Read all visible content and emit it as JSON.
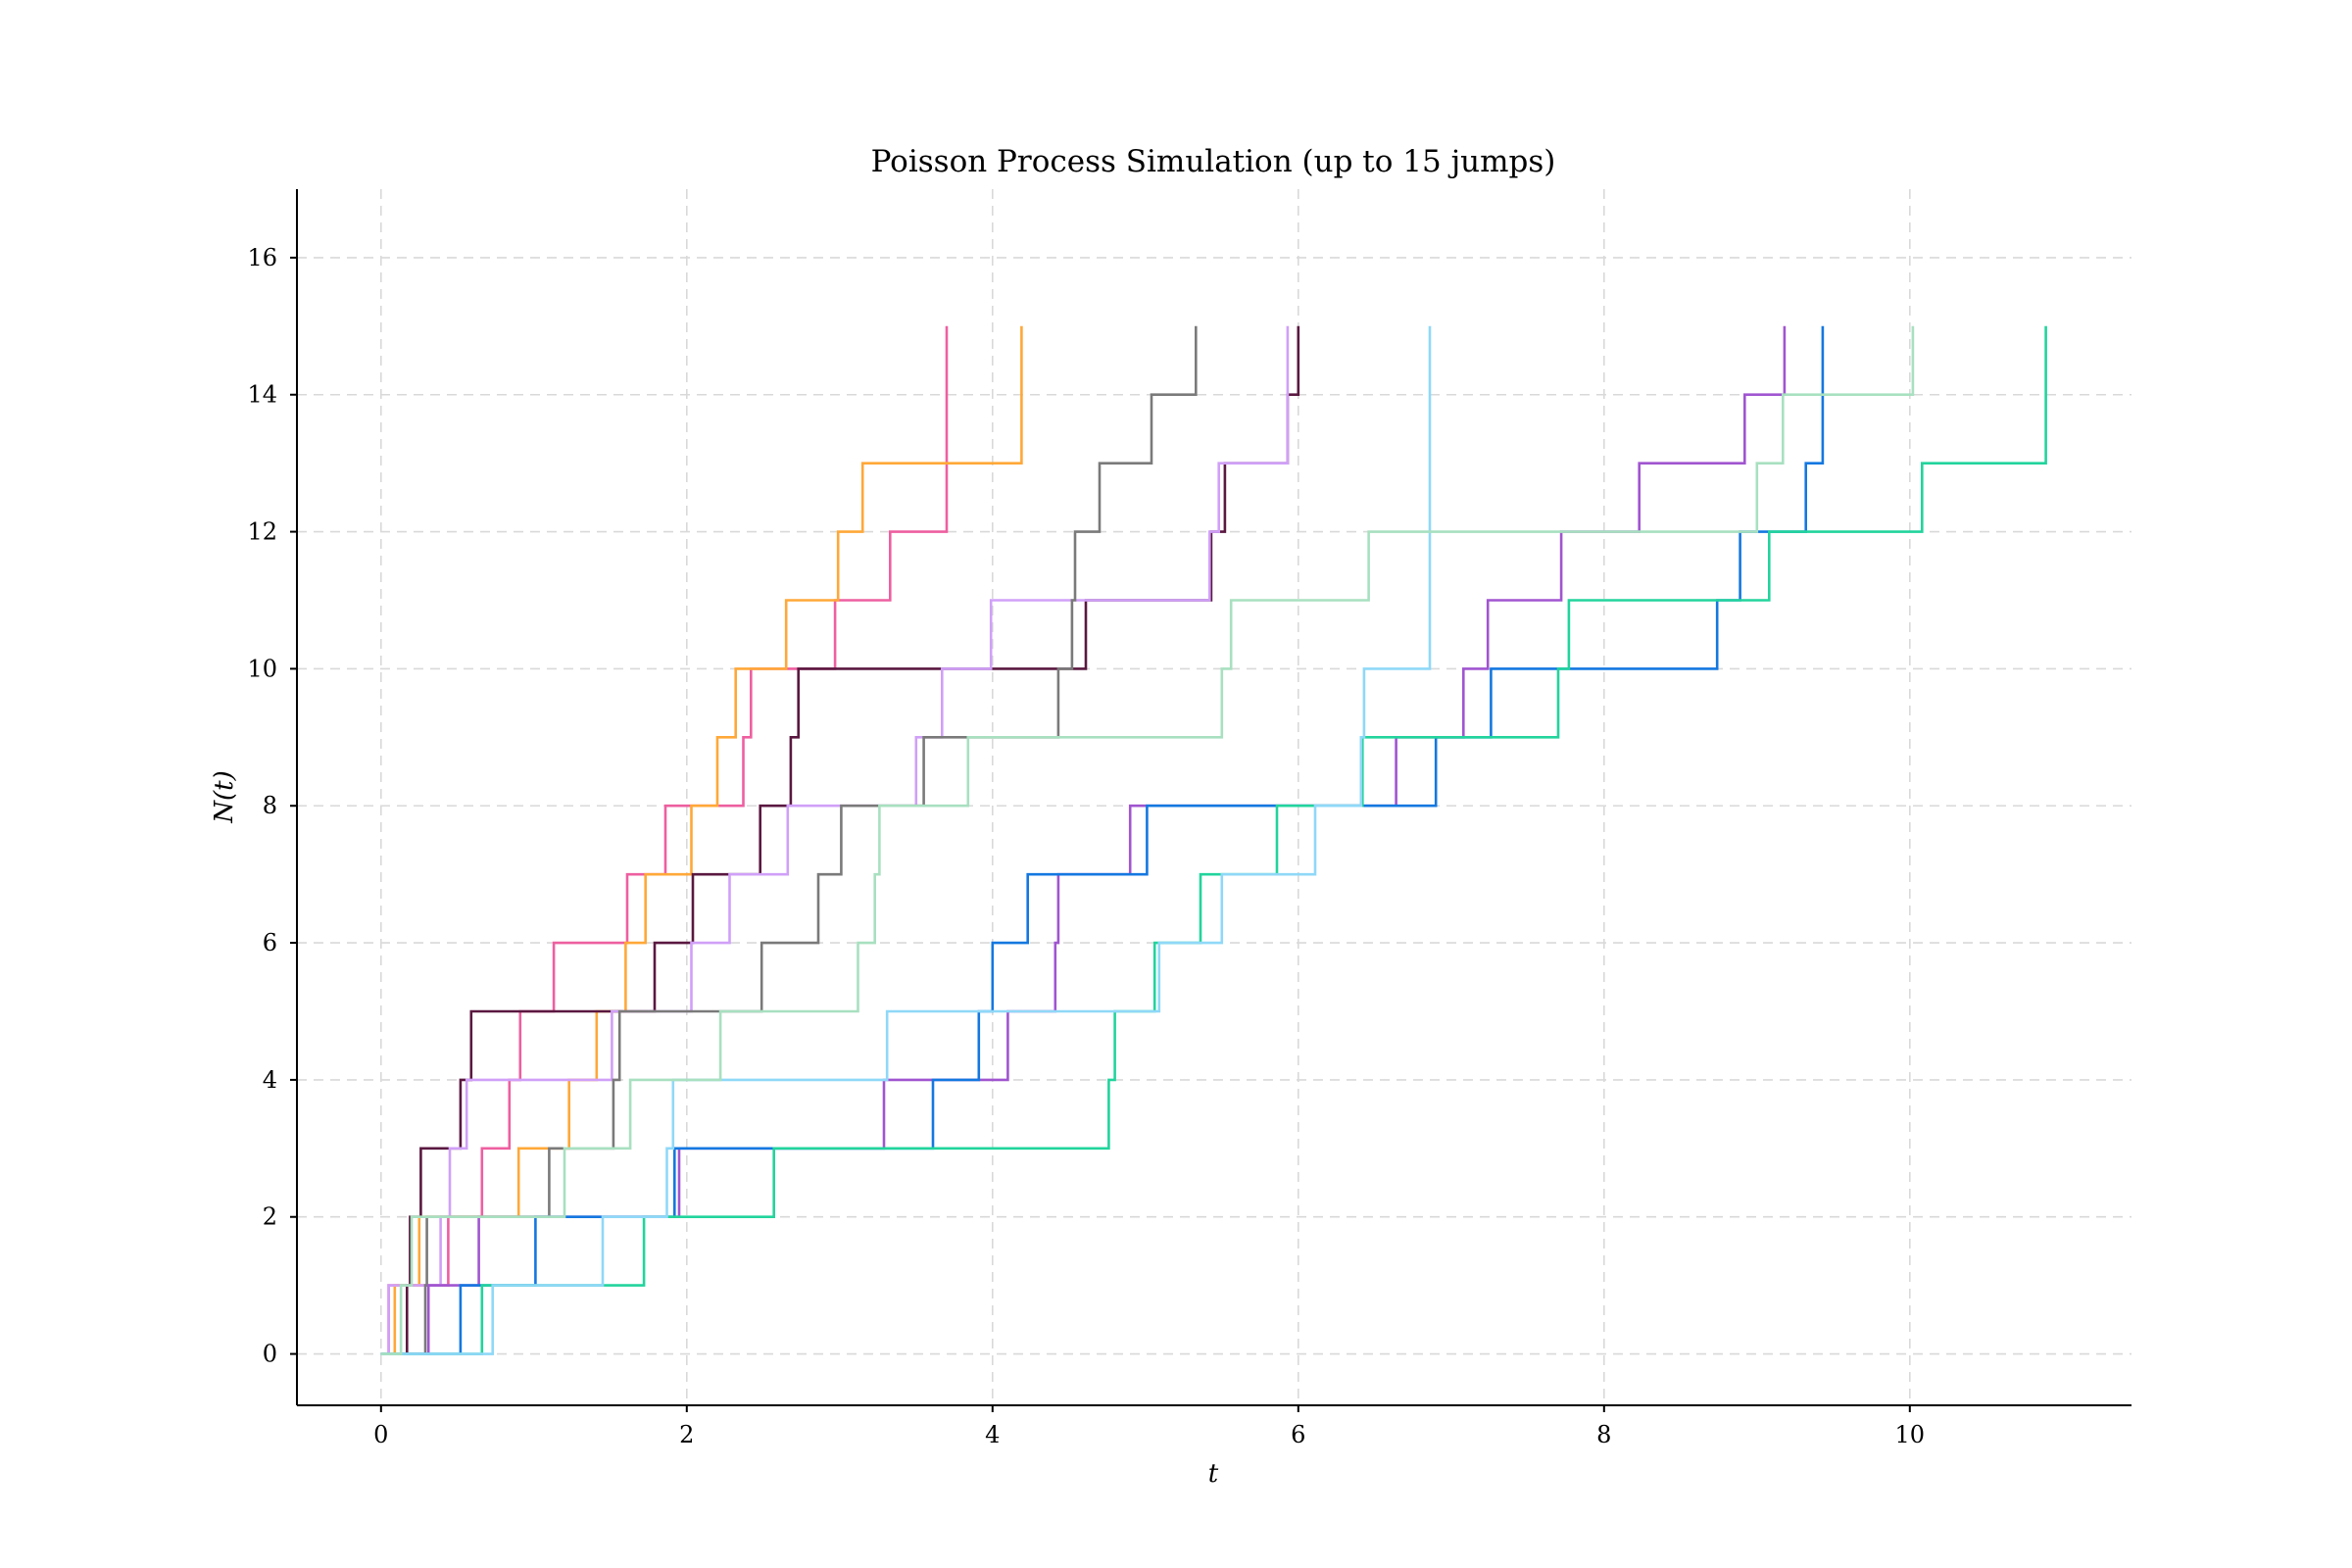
{
  "chart_data": {
    "type": "line",
    "step": "post",
    "title": "Poisson Process Simulation (up to 15 jumps)",
    "xlabel": "t",
    "ylabel": "N(t)",
    "xlim": [
      -0.55,
      11.45
    ],
    "ylim": [
      -0.75,
      17.0
    ],
    "xticks": [
      0,
      2,
      4,
      6,
      8,
      10
    ],
    "yticks": [
      0,
      2,
      4,
      6,
      8,
      10,
      12,
      14,
      16
    ],
    "grid": true,
    "legend": "none",
    "series": [
      {
        "color": "#ee5fa0",
        "jump_times": [
          0.05,
          0.44,
          0.66,
          0.84,
          0.91,
          1.13,
          1.61,
          1.86,
          2.37,
          2.42,
          2.97,
          3.33,
          3.7,
          3.7,
          3.7
        ]
      },
      {
        "color": "#ffa838",
        "jump_times": [
          0.09,
          0.25,
          0.9,
          1.23,
          1.41,
          1.6,
          1.73,
          2.03,
          2.2,
          2.32,
          2.65,
          2.99,
          3.15,
          4.19,
          4.19
        ]
      },
      {
        "color": "#5a1840",
        "jump_times": [
          0.17,
          0.19,
          0.26,
          0.52,
          0.59,
          1.79,
          2.04,
          2.48,
          2.68,
          2.73,
          4.61,
          5.43,
          5.52,
          5.93,
          6.0
        ]
      },
      {
        "color": "#d0a0f8",
        "jump_times": [
          0.05,
          0.39,
          0.45,
          0.56,
          1.51,
          2.03,
          2.28,
          2.66,
          3.5,
          3.67,
          3.99,
          5.42,
          5.48,
          5.93,
          5.93
        ]
      },
      {
        "color": "#7a7a7a",
        "jump_times": [
          0.29,
          0.3,
          1.1,
          1.52,
          1.56,
          2.49,
          2.86,
          3.01,
          3.55,
          4.43,
          4.52,
          4.54,
          4.7,
          5.04,
          5.33
        ]
      },
      {
        "color": "#a055d0",
        "jump_times": [
          0.31,
          0.64,
          1.95,
          3.29,
          4.1,
          4.41,
          4.43,
          4.9,
          6.64,
          7.08,
          7.24,
          7.72,
          8.23,
          8.92,
          9.18
        ]
      },
      {
        "color": "#1478e0",
        "jump_times": [
          0.52,
          1.01,
          1.92,
          3.61,
          3.91,
          4.0,
          4.23,
          5.01,
          6.9,
          7.26,
          8.74,
          8.89,
          9.32,
          9.43,
          9.43
        ]
      },
      {
        "color": "#22d49c",
        "jump_times": [
          0.66,
          1.72,
          2.57,
          4.76,
          4.8,
          5.06,
          5.36,
          5.86,
          6.42,
          7.7,
          7.77,
          9.08,
          10.08,
          10.89,
          10.89
        ]
      },
      {
        "color": "#8fd8f8",
        "jump_times": [
          0.73,
          1.45,
          1.87,
          1.91,
          3.31,
          5.09,
          5.5,
          6.11,
          6.41,
          6.43,
          6.86,
          6.86,
          6.86,
          6.86,
          6.86
        ]
      },
      {
        "color": "#a8e0c0",
        "jump_times": [
          0.13,
          0.2,
          1.2,
          1.63,
          2.22,
          3.12,
          3.23,
          3.26,
          3.84,
          5.5,
          5.56,
          6.46,
          9.0,
          9.17,
          10.02
        ]
      }
    ]
  }
}
